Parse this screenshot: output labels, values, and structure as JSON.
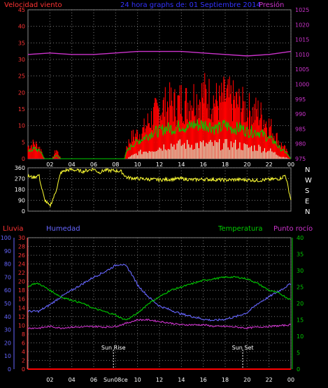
{
  "header": {
    "left_label": "Velocidad viento",
    "center_title": "24 hora graphs de: 01 Septiembre 2014",
    "right_label": "Presión"
  },
  "colors": {
    "wind_gust": "#ff0000",
    "wind_avg": "#00cc00",
    "wind_min": "#d8ffd8",
    "pressure": "#cc33cc",
    "direction": "#ffff33",
    "rain": "#ff0000",
    "humidity": "#6666ff",
    "temperature": "#00cc00",
    "dewpoint": "#cc33cc",
    "grid": "#aaaaaa",
    "axis_left": "#ff3333",
    "axis_right": "#cc33cc",
    "axis_humidity": "#6666ff",
    "axis_temp": "#00cc00",
    "text": "#ffffff"
  },
  "chart_data": [
    {
      "id": "wind_pressure",
      "type": "area",
      "x_ticks": [
        "02",
        "04",
        "06",
        "08",
        "10",
        "12",
        "14",
        "16",
        "18",
        "20",
        "22",
        "00"
      ],
      "left_axis": {
        "ylim": [
          0,
          45
        ],
        "ticks": [
          0,
          5,
          10,
          15,
          20,
          25,
          30,
          35,
          40,
          45
        ]
      },
      "right_axis": {
        "ylim": [
          975,
          1025
        ],
        "ticks": [
          975,
          980,
          985,
          990,
          995,
          1000,
          1005,
          1010,
          1015,
          1020,
          1025
        ]
      },
      "series": [
        {
          "key": "gust",
          "hours": [
            0,
            0.6,
            1.2,
            1.5,
            1.8,
            2.2,
            2.6,
            3,
            4,
            5,
            6,
            7,
            8,
            8.8,
            9,
            9.5,
            10,
            10.5,
            11,
            11.5,
            12,
            12.5,
            13,
            13.5,
            14,
            14.5,
            15,
            15.5,
            16,
            16.5,
            17,
            17.5,
            18,
            18.5,
            19,
            19.5,
            20,
            20.5,
            21,
            21.5,
            22,
            22.5,
            23,
            23.5,
            24
          ],
          "values": [
            4,
            5,
            3,
            0,
            0,
            0,
            3,
            0,
            0,
            0,
            0,
            0,
            0,
            0,
            4,
            7,
            8,
            9,
            12,
            14,
            16,
            17,
            18,
            17,
            19,
            18,
            20,
            19,
            21,
            20,
            19,
            18,
            20,
            19,
            18,
            17,
            16,
            15,
            15,
            13,
            11,
            8,
            5,
            3,
            0
          ]
        },
        {
          "key": "avg",
          "hours": [
            0,
            0.6,
            1.2,
            1.5,
            1.8,
            2.2,
            2.6,
            3,
            4,
            5,
            6,
            7,
            8,
            8.8,
            9,
            9.5,
            10,
            10.5,
            11,
            11.5,
            12,
            12.5,
            13,
            13.5,
            14,
            14.5,
            15,
            15.5,
            16,
            16.5,
            17,
            17.5,
            18,
            18.5,
            19,
            19.5,
            20,
            20.5,
            21,
            21.5,
            22,
            22.5,
            23,
            23.5,
            24
          ],
          "values": [
            2,
            3,
            2,
            0,
            0,
            0,
            1,
            0,
            0,
            0,
            0,
            0,
            0,
            0,
            2,
            4,
            5,
            6,
            7,
            8,
            8,
            9,
            9,
            9,
            10,
            9,
            10,
            10,
            10,
            10,
            9,
            9,
            10,
            9,
            9,
            9,
            8,
            8,
            8,
            7,
            6,
            5,
            3,
            2,
            0
          ]
        },
        {
          "key": "min",
          "hours": [
            0,
            1.5,
            9,
            9.5,
            10,
            11,
            12,
            13,
            14,
            15,
            16,
            17,
            18,
            19,
            20,
            21,
            22,
            23,
            24
          ],
          "values": [
            0,
            0,
            0,
            1,
            2,
            3,
            4,
            5,
            5,
            5,
            5,
            5,
            5,
            5,
            4,
            4,
            3,
            1,
            0
          ]
        },
        {
          "key": "pressure",
          "hours": [
            0,
            2,
            4,
            6,
            8,
            10,
            12,
            14,
            16,
            18,
            20,
            22,
            24
          ],
          "values": [
            1010,
            1010.5,
            1010,
            1010,
            1010.5,
            1011,
            1011,
            1011,
            1010.5,
            1010,
            1009.5,
            1010,
            1011
          ]
        }
      ]
    },
    {
      "id": "direction",
      "type": "line",
      "ylim": [
        0,
        360
      ],
      "ticks": [
        0,
        90,
        180,
        270,
        360
      ],
      "compass": [
        "N",
        "W",
        "S",
        "E",
        "N"
      ],
      "series": [
        {
          "key": "direction",
          "hours": [
            0,
            0.5,
            1,
            1.2,
            1.5,
            1.8,
            2,
            2.5,
            3,
            3.5,
            4,
            5,
            6,
            6.5,
            7,
            8,
            8.5,
            9,
            10,
            11,
            12,
            13,
            14,
            15,
            16,
            17,
            18,
            19,
            20,
            21,
            22,
            23,
            23.5,
            24
          ],
          "values": [
            290,
            280,
            300,
            210,
            100,
            60,
            40,
            150,
            320,
            340,
            345,
            330,
            350,
            320,
            340,
            335,
            330,
            280,
            270,
            265,
            260,
            265,
            270,
            260,
            265,
            262,
            258,
            262,
            260,
            255,
            262,
            270,
            300,
            90
          ]
        }
      ]
    },
    {
      "id": "hum_temp",
      "type": "line",
      "header": {
        "rain_label": "Lluvia",
        "humidity_label": "Humedad",
        "temp_label": "Temperatura",
        "dew_label": "Punto rocío"
      },
      "humidity_axis": {
        "ylim": [
          0,
          100
        ],
        "ticks": [
          0,
          10,
          20,
          30,
          40,
          50,
          60,
          70,
          80,
          90,
          100
        ]
      },
      "rain_axis": {
        "ylim": [
          0,
          30
        ],
        "ticks": [
          0,
          2,
          4,
          6,
          8,
          10,
          12,
          14,
          16,
          18,
          20,
          22,
          24,
          26,
          28,
          30
        ]
      },
      "temp_axis": {
        "ylim": [
          0,
          40
        ],
        "ticks": [
          0,
          5,
          10,
          15,
          20,
          25,
          30,
          35,
          40
        ]
      },
      "x_ticks": [
        "02",
        "04",
        "06",
        "08",
        "10",
        "12",
        "14",
        "16",
        "18",
        "20",
        "22",
        "00"
      ],
      "annotations": [
        "Sun Rise",
        "Sun Set"
      ],
      "x_tick_sunrise_label": "Sun08ce",
      "series": [
        {
          "key": "humidity",
          "hours": [
            0,
            1,
            2,
            3,
            4,
            5,
            6,
            7,
            8,
            8.5,
            9,
            9.5,
            10,
            11,
            12,
            13,
            14,
            15,
            16,
            17,
            18,
            19,
            20,
            21,
            22,
            23,
            24
          ],
          "values": [
            44,
            44,
            49,
            55,
            60,
            65,
            70,
            74,
            79,
            80,
            78,
            72,
            64,
            55,
            48,
            45,
            42,
            40,
            38,
            37,
            38,
            40,
            43,
            50,
            55,
            60,
            65
          ]
        },
        {
          "key": "temperature",
          "hours": [
            0,
            0.5,
            1,
            2,
            3,
            4,
            5,
            6,
            7,
            8,
            8.5,
            9,
            10,
            11,
            12,
            13,
            14,
            15,
            16,
            17,
            18,
            19,
            20,
            21,
            22,
            23,
            24
          ],
          "values": [
            25,
            26,
            26,
            24,
            22,
            21,
            20,
            18.5,
            17.5,
            16.5,
            15.5,
            15,
            17,
            20,
            22,
            24,
            25,
            26,
            27,
            27.5,
            28,
            28,
            27.5,
            26,
            24,
            23,
            21
          ]
        },
        {
          "key": "dewpoint",
          "hours": [
            0,
            1,
            2,
            3,
            4,
            5,
            6,
            7,
            8,
            9,
            10,
            11,
            12,
            13,
            14,
            15,
            16,
            17,
            18,
            19,
            20,
            21,
            22,
            23,
            24
          ],
          "values": [
            12.5,
            12.5,
            13,
            12.5,
            12.8,
            12.8,
            13,
            12.8,
            13,
            14,
            15,
            15,
            14.5,
            14,
            13.5,
            13.5,
            13.5,
            13,
            13,
            12.8,
            12.5,
            12.8,
            13,
            13.2,
            13.5
          ]
        },
        {
          "key": "rain",
          "hours": [
            0,
            24
          ],
          "values": [
            0,
            0
          ]
        }
      ]
    }
  ]
}
